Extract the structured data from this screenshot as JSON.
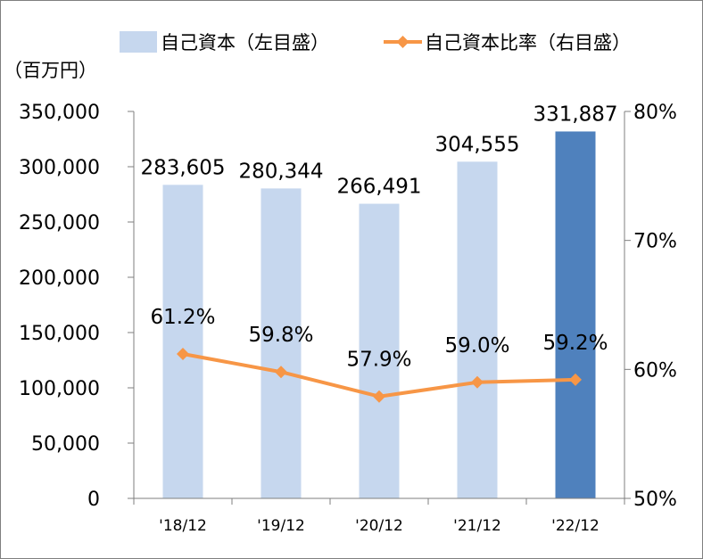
{
  "chart_data": {
    "type": "bar",
    "categories": [
      "'18/12",
      "'19/12",
      "'20/12",
      "'21/12",
      "'22/12"
    ],
    "series": [
      {
        "name": "自己資本（左目盛）",
        "type": "bar",
        "axis": "left",
        "values": [
          283605,
          280344,
          266491,
          304555,
          331887
        ],
        "value_labels": [
          "283,605",
          "280,344",
          "266,491",
          "304,555",
          "331,887"
        ],
        "color": "#c6d7ee",
        "highlight_color": "#4f81bd",
        "highlight_index": 4
      },
      {
        "name": "自己資本比率（右目盛）",
        "type": "line",
        "axis": "right",
        "values": [
          61.2,
          59.8,
          57.9,
          59.0,
          59.2
        ],
        "value_labels": [
          "61.2%",
          "59.8%",
          "57.9%",
          "59.0%",
          "59.2%"
        ],
        "color": "#f79646",
        "marker": "diamond"
      }
    ],
    "y_left": {
      "unit_label": "（百万円）",
      "ylim": [
        0,
        350000
      ],
      "ticks": [
        0,
        50000,
        100000,
        150000,
        200000,
        250000,
        300000,
        350000
      ],
      "tick_labels": [
        "0",
        "50,000",
        "100,000",
        "150,000",
        "200,000",
        "250,000",
        "300,000",
        "350,000"
      ]
    },
    "y_right": {
      "ylim": [
        50,
        80
      ],
      "ticks": [
        50,
        60,
        70,
        80
      ],
      "tick_labels": [
        "50%",
        "60%",
        "70%",
        "80%"
      ]
    },
    "grid": false,
    "legend": "top"
  }
}
